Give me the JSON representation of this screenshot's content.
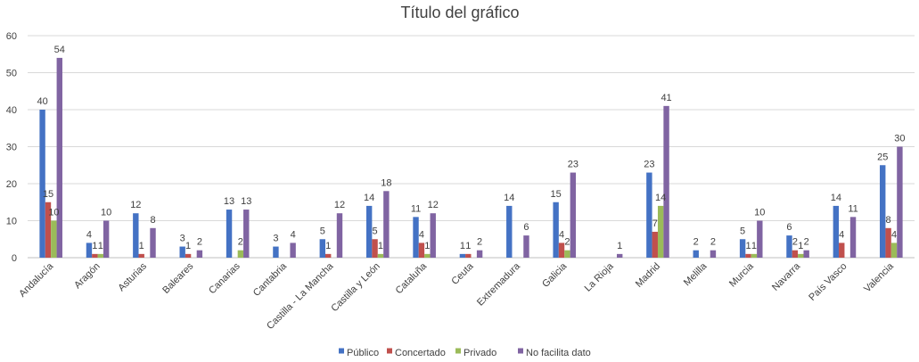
{
  "chart_data": {
    "type": "bar",
    "title": "Título del gráfico",
    "xlabel": "",
    "ylabel": "",
    "ylim": [
      0,
      60
    ],
    "yticks": [
      0,
      10,
      20,
      30,
      40,
      50,
      60
    ],
    "grid": true,
    "legend_position": "bottom",
    "categories": [
      "Andalucía",
      "Aragón",
      "Asturias",
      "Baleares",
      "Canarias",
      "Cantabria",
      "Castilla - La Mancha",
      "Castilla y León",
      "Cataluña",
      "Ceuta",
      "Extremadura",
      "Galicia",
      "La Rioja",
      "Madrid",
      "Melilla",
      "Murcia",
      "Navarra",
      "País Vasco",
      "Valencia"
    ],
    "series": [
      {
        "name": "Público",
        "color": "#4472c4",
        "values": [
          40,
          4,
          12,
          3,
          13,
          3,
          5,
          14,
          11,
          1,
          14,
          15,
          null,
          23,
          2,
          5,
          6,
          14,
          25
        ]
      },
      {
        "name": "Concertado",
        "color": "#c0504d",
        "values": [
          15,
          1,
          1,
          1,
          null,
          null,
          1,
          5,
          4,
          1,
          null,
          4,
          null,
          7,
          null,
          1,
          2,
          4,
          8
        ]
      },
      {
        "name": "Privado",
        "color": "#9bbb59",
        "values": [
          10,
          1,
          null,
          null,
          2,
          null,
          null,
          1,
          1,
          null,
          null,
          2,
          null,
          14,
          null,
          1,
          1,
          null,
          4
        ]
      },
      {
        "name": "No facilita dato",
        "color": "#8064a2",
        "values": [
          54,
          10,
          8,
          2,
          13,
          4,
          12,
          18,
          12,
          2,
          6,
          23,
          1,
          41,
          2,
          10,
          2,
          11,
          30
        ]
      }
    ]
  }
}
